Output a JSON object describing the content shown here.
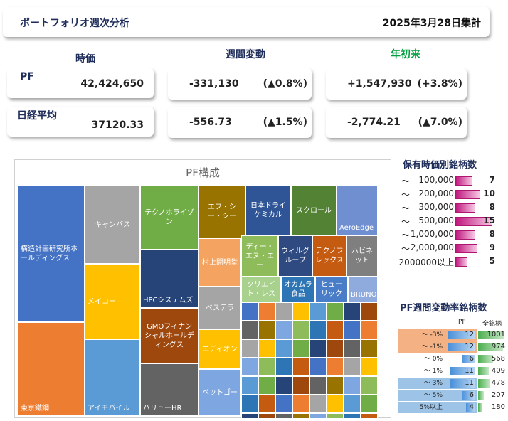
{
  "header": {
    "title": "ポートフォリオ週次分析",
    "date": "2025年3月28日集計"
  },
  "columns": {
    "price": "時価",
    "weekly": "週間変動",
    "ytd": "年初来"
  },
  "rows": [
    {
      "label": "PF",
      "value": "42,424,650",
      "weekly_abs": "-331,130",
      "weekly_pct": "(▲0.8%)",
      "ytd_abs": "+1,547,930",
      "ytd_pct": "(+3.8%)"
    },
    {
      "label": "日経平均",
      "value": "37120.33",
      "weekly_abs": "-556.73",
      "weekly_pct": "(▲1.5%)",
      "ytd_abs": "-2,774.21",
      "ytd_pct": "(▲7.0%)"
    }
  ],
  "treemap": {
    "title": "PF構成",
    "tiles": [
      {
        "name": "構造計画研究所ホールディングス",
        "color": "#4472c4"
      },
      {
        "name": "東京鐵鋼",
        "color": "#ed7d31"
      },
      {
        "name": "キャンバス",
        "color": "#a5a5a5"
      },
      {
        "name": "メイコー",
        "color": "#ffc000"
      },
      {
        "name": "アイモバイル",
        "color": "#5b9bd5"
      },
      {
        "name": "テクノホライゾン",
        "color": "#70ad47"
      },
      {
        "name": "HPCシステムズ",
        "color": "#264478"
      },
      {
        "name": "GMOフィナンシャルホールディングス",
        "color": "#9e480e"
      },
      {
        "name": "バリューHR",
        "color": "#636363"
      },
      {
        "name": "エフ・シー・シー",
        "color": "#997300"
      },
      {
        "name": "村上開明堂",
        "color": "#f4a460"
      },
      {
        "name": "ベステラ",
        "color": "#a5a5a5"
      },
      {
        "name": "エディオン",
        "color": "#ffc000"
      },
      {
        "name": "ペットゴー",
        "color": "#7ea6e0"
      },
      {
        "name": "日本ドライケミカル",
        "color": "#2f5597"
      },
      {
        "name": "スクロール",
        "color": "#548235"
      },
      {
        "name": "AeroEdge",
        "color": "#6f8fd0"
      },
      {
        "name": "ディー・エヌ・エー",
        "color": "#8fbc5a"
      },
      {
        "name": "ウィルグループ",
        "color": "#2e4a80"
      },
      {
        "name": "テクノフレックス",
        "color": "#c55a11"
      },
      {
        "name": "ハビネット",
        "color": "#7f7f7f"
      },
      {
        "name": "クリエイト・レス",
        "color": "#a9d18e"
      },
      {
        "name": "オカムラ食品",
        "color": "#2e75b6"
      },
      {
        "name": "ヒューリック",
        "color": "#4a7dc8"
      },
      {
        "name": "BRUNO",
        "color": "#8faadc"
      }
    ]
  },
  "holdings": {
    "title": "保有時価別銘柄数",
    "rows": [
      {
        "sym": "～",
        "label": "100,000",
        "count": "7",
        "frac": 0.47
      },
      {
        "sym": "～",
        "label": "200,000",
        "count": "10",
        "frac": 0.67
      },
      {
        "sym": "～",
        "label": "300,000",
        "count": "8",
        "frac": 0.53
      },
      {
        "sym": "～",
        "label": "500,000",
        "count": "15",
        "frac": 1.0
      },
      {
        "sym": "～",
        "label": "1,000,000",
        "count": "8",
        "frac": 0.53
      },
      {
        "sym": "～",
        "label": "2,000,000",
        "count": "9",
        "frac": 0.6
      },
      {
        "sym": "",
        "label": "2000000以上",
        "count": "5",
        "frac": 0.33
      }
    ]
  },
  "weekly_change": {
    "title": "PF週間変動率銘柄数",
    "col_pf": "PF",
    "col_all": "全銘柄",
    "rows": [
      {
        "label": "～ -3%",
        "pf": "12",
        "all": "1001",
        "pf_frac": 1.0,
        "all_frac": 1.0,
        "bg": "#f4b183"
      },
      {
        "label": "～ -1%",
        "pf": "12",
        "all": "974",
        "pf_frac": 1.0,
        "all_frac": 0.97,
        "bg": "#f4b183"
      },
      {
        "label": "～ 0%",
        "pf": "6",
        "all": "568",
        "pf_frac": 0.5,
        "all_frac": 0.57,
        "bg": "#ffffff"
      },
      {
        "label": "～ 1%",
        "pf": "11",
        "all": "409",
        "pf_frac": 0.92,
        "all_frac": 0.41,
        "bg": "#ffffff"
      },
      {
        "label": "～ 3%",
        "pf": "11",
        "all": "478",
        "pf_frac": 0.92,
        "all_frac": 0.48,
        "bg": "#9dc3e6"
      },
      {
        "label": "～ 5%",
        "pf": "6",
        "all": "207",
        "pf_frac": 0.5,
        "all_frac": 0.21,
        "bg": "#9dc3e6"
      },
      {
        "label": "5%以上",
        "pf": "4",
        "all": "180",
        "pf_frac": 0.33,
        "all_frac": 0.18,
        "bg": "#9dc3e6"
      }
    ]
  },
  "colors": {
    "weekly_head": "#1f2d5a",
    "ytd_head": "#00a040"
  }
}
